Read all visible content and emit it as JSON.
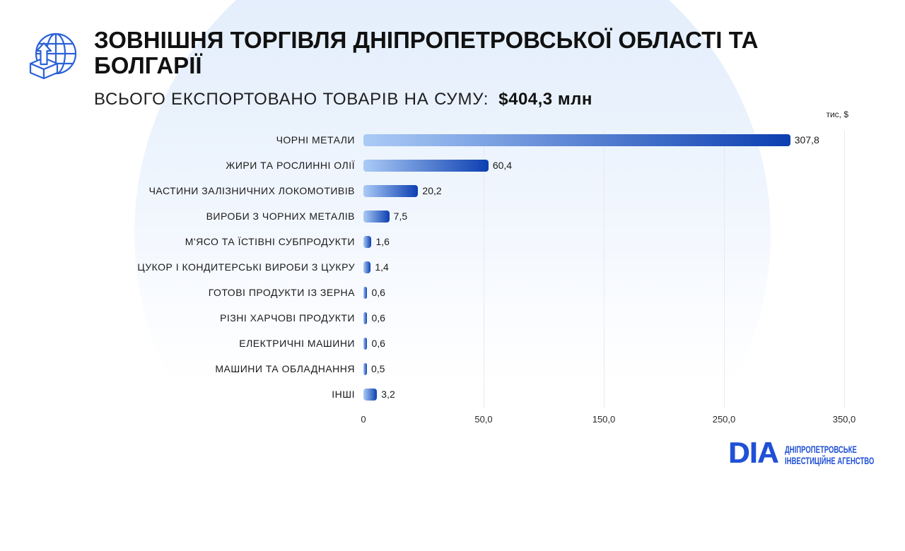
{
  "theme": {
    "accent": "#2c62d8",
    "brand": "#1f50d6"
  },
  "header": {
    "icon": "globe-export-icon",
    "title_line1": "ЗОВНІШНЯ ТОРГІВЛЯ ДНІПРОПЕТРОВСЬКОЇ ОБЛАСТІ ТА",
    "title_line2": "БОЛГАРІЇ",
    "subtitle_label": "ВСЬОГО ЕКСПОРТОВАНО ТОВАРІВ НА СУМУ:",
    "subtitle_total": "$404,3 млн"
  },
  "chart_data": {
    "type": "bar",
    "orientation": "horizontal",
    "unit_label": "тис, $",
    "categories": [
      "ЧОРНІ МЕТАЛИ",
      "ЖИРИ ТА РОСЛИННІ ОЛІЇ",
      "ЧАСТИНИ ЗАЛІЗНИЧНИХ ЛОКОМОТИВІВ",
      "ВИРОБИ З ЧОРНИХ МЕТАЛІВ",
      "М'ЯСО ТА ЇСТІВНІ СУБПРОДУКТИ",
      "ЦУКОР І КОНДИТЕРСЬКІ ВИРОБИ З ЦУКРУ",
      "ГОТОВІ ПРОДУКТИ ІЗ ЗЕРНА",
      "РІЗНІ ХАРЧОВІ ПРОДУКТИ",
      "ЕЛЕКТРИЧНІ МАШИНИ",
      "МАШИНИ ТА ОБЛАДНАННЯ",
      "ІНШІ"
    ],
    "values": [
      307.8,
      60.4,
      20.2,
      7.5,
      1.6,
      1.4,
      0.6,
      0.6,
      0.6,
      0.5,
      3.2
    ],
    "x_ticks": [
      0,
      50,
      150,
      250,
      350
    ],
    "x_tick_labels": [
      "0",
      "50,0",
      "150,0",
      "250,0",
      "350,0"
    ],
    "xlim": [
      0,
      350
    ],
    "grid": true,
    "legend": "none",
    "bar_gradient": [
      "#abcbf6",
      "#0c3fb1"
    ]
  },
  "footer": {
    "logo_text": "DIA",
    "agency_line1": "ДНІПРОПЕТРОВСЬКЕ",
    "agency_line2": "ІНВЕСТИЦІЙНЕ АГЕНСТВО"
  }
}
